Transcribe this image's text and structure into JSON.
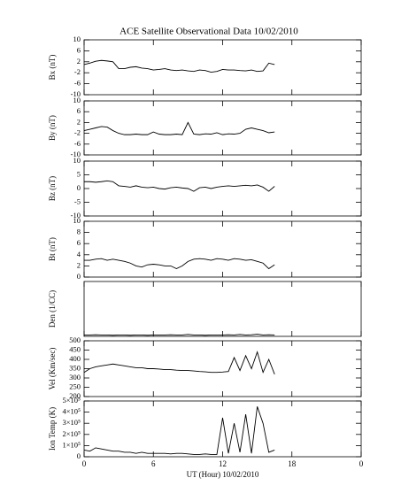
{
  "chart_data": [
    {
      "type": "line",
      "title": "ACE Satellite Observational Data   10/02/2010",
      "ylabel": "Bx (nT)",
      "color": "#000000",
      "x": [
        0,
        0.5,
        1,
        1.5,
        2,
        2.5,
        3,
        3.5,
        4,
        4.5,
        5,
        5.5,
        6,
        6.5,
        7,
        7.5,
        8,
        8.5,
        9,
        9.5,
        10,
        10.5,
        11,
        11.5,
        12,
        12.5,
        13,
        13.5,
        14,
        14.5,
        15,
        15.5,
        16,
        16.5
      ],
      "values": [
        1,
        1.5,
        2.2,
        2.5,
        2.3,
        2,
        -0.5,
        -0.5,
        0,
        0.2,
        -0.3,
        -0.5,
        -1,
        -0.8,
        -0.5,
        -1,
        -1.2,
        -1,
        -1.3,
        -1.5,
        -1,
        -1.2,
        -1.8,
        -1.5,
        -0.8,
        -1,
        -1,
        -1.2,
        -1.3,
        -1,
        -1.5,
        -1.3,
        1.5,
        1
      ],
      "xlim": [
        0,
        24
      ],
      "ylim": [
        -10,
        10
      ],
      "yticks": [
        -10,
        -6,
        -2,
        2,
        6,
        10
      ]
    },
    {
      "type": "line",
      "ylabel": "By (nT)",
      "color": "#000000",
      "x": [
        0,
        0.5,
        1,
        1.5,
        2,
        2.5,
        3,
        3.5,
        4,
        4.5,
        5,
        5.5,
        6,
        6.5,
        7,
        7.5,
        8,
        8.5,
        9,
        9.5,
        10,
        10.5,
        11,
        11.5,
        12,
        12.5,
        13,
        13.5,
        14,
        14.5,
        15,
        15.5,
        16,
        16.5
      ],
      "values": [
        -1,
        -0.5,
        0,
        0.5,
        0.3,
        -1,
        -2,
        -2.5,
        -2.5,
        -2.3,
        -2.5,
        -2.5,
        -1.5,
        -2.3,
        -2.5,
        -2.5,
        -2.3,
        -2.5,
        2,
        -2.3,
        -2.5,
        -2.2,
        -2.3,
        -1.8,
        -2.5,
        -2.2,
        -2.3,
        -2,
        -0.5,
        0,
        -0.5,
        -1,
        -1.8,
        -1.5
      ],
      "xlim": [
        0,
        24
      ],
      "ylim": [
        -10,
        10
      ],
      "yticks": [
        -10,
        -6,
        -2,
        2,
        6,
        10
      ]
    },
    {
      "type": "line",
      "ylabel": "Bz (nT)",
      "color": "#000000",
      "x": [
        0,
        0.5,
        1,
        1.5,
        2,
        2.5,
        3,
        3.5,
        4,
        4.5,
        5,
        5.5,
        6,
        6.5,
        7,
        7.5,
        8,
        8.5,
        9,
        9.5,
        10,
        10.5,
        11,
        11.5,
        12,
        12.5,
        13,
        13.5,
        14,
        14.5,
        15,
        15.5,
        16,
        16.5
      ],
      "values": [
        2.5,
        2.5,
        2.3,
        2.5,
        2.8,
        2.5,
        1,
        0.8,
        0.5,
        1,
        0.5,
        0.3,
        0.5,
        0,
        -0.2,
        0.3,
        0.5,
        0.2,
        0,
        -1,
        0.3,
        0.5,
        0,
        0.5,
        0.8,
        1,
        0.8,
        1,
        1.2,
        1,
        1.3,
        0.5,
        -1,
        0.8
      ],
      "xlim": [
        0,
        24
      ],
      "ylim": [
        -10,
        10
      ],
      "yticks": [
        -10,
        -5,
        0,
        5,
        10
      ]
    },
    {
      "type": "line",
      "ylabel": "Bt (nT)",
      "color": "#000000",
      "x": [
        0,
        0.5,
        1,
        1.5,
        2,
        2.5,
        3,
        3.5,
        4,
        4.5,
        5,
        5.5,
        6,
        6.5,
        7,
        7.5,
        8,
        8.5,
        9,
        9.5,
        10,
        10.5,
        11,
        11.5,
        12,
        12.5,
        13,
        13.5,
        14,
        14.5,
        15,
        15.5,
        16,
        16.5
      ],
      "values": [
        3,
        3,
        3.2,
        3.3,
        3,
        3.2,
        3,
        2.8,
        2.5,
        2,
        1.8,
        2.2,
        2.3,
        2.2,
        2,
        2,
        1.5,
        2,
        2.8,
        3.2,
        3.3,
        3.2,
        3,
        3.3,
        3.2,
        3,
        3.3,
        3.2,
        3,
        3.1,
        2.8,
        2.5,
        1.5,
        2.2
      ],
      "xlim": [
        0,
        24
      ],
      "ylim": [
        0,
        10
      ],
      "yticks": [
        0,
        2,
        4,
        6,
        8,
        10
      ]
    },
    {
      "type": "line",
      "ylabel": "Den (1/CC)",
      "color": "#000000",
      "x": [
        0,
        0.5,
        1,
        1.5,
        2,
        2.5,
        3,
        3.5,
        4,
        4.5,
        5,
        5.5,
        6,
        6.5,
        7,
        7.5,
        8,
        8.5,
        9,
        9.5,
        10,
        10.5,
        11,
        11.5,
        12,
        12.5,
        13,
        13.5,
        14,
        14.5,
        15,
        15.5,
        16,
        16.5
      ],
      "values": [
        0.5,
        0.5,
        0.6,
        0.5,
        0.5,
        0.4,
        0.5,
        0.5,
        0.4,
        0.5,
        0.5,
        0.4,
        0.5,
        0.5,
        0.5,
        0.6,
        0.5,
        0.5,
        0.7,
        0.5,
        0.5,
        0.4,
        0.5,
        0.5,
        0.5,
        0.6,
        0.5,
        0.7,
        0.5,
        0.6,
        0.8,
        0.5,
        0.6,
        0.5
      ],
      "xlim": [
        0,
        24
      ],
      "ylim": [
        0,
        20
      ]
    },
    {
      "type": "line",
      "ylabel": "Vel (Km/sec)",
      "color": "#000000",
      "x": [
        0,
        0.5,
        1,
        1.5,
        2,
        2.5,
        3,
        3.5,
        4,
        4.5,
        5,
        5.5,
        6,
        6.5,
        7,
        7.5,
        8,
        8.5,
        9,
        9.5,
        10,
        10.5,
        11,
        11.5,
        12,
        12.5,
        13,
        13.5,
        14,
        14.5,
        15,
        15.5,
        16,
        16.5
      ],
      "values": [
        330,
        350,
        360,
        365,
        370,
        375,
        370,
        365,
        360,
        355,
        355,
        350,
        350,
        348,
        345,
        345,
        342,
        340,
        340,
        338,
        335,
        333,
        330,
        330,
        332,
        335,
        410,
        340,
        420,
        350,
        440,
        330,
        400,
        320
      ],
      "xlim": [
        0,
        24
      ],
      "ylim": [
        200,
        500
      ],
      "yticks": [
        200,
        250,
        300,
        350,
        400,
        450,
        500
      ]
    },
    {
      "type": "line",
      "ylabel": "Ion Temp (K)",
      "xlabel": "UT (Hour)  10/02/2010",
      "color": "#000000",
      "x": [
        0,
        0.5,
        1,
        1.5,
        2,
        2.5,
        3,
        3.5,
        4,
        4.5,
        5,
        5.5,
        6,
        6.5,
        7,
        7.5,
        8,
        8.5,
        9,
        9.5,
        10,
        10.5,
        11,
        11.5,
        12,
        12.5,
        13,
        13.5,
        14,
        14.5,
        15,
        15.5,
        16,
        16.5
      ],
      "values": [
        60000,
        50000,
        80000,
        70000,
        60000,
        50000,
        50000,
        40000,
        40000,
        30000,
        40000,
        30000,
        30000,
        30000,
        30000,
        25000,
        30000,
        30000,
        25000,
        20000,
        20000,
        25000,
        20000,
        20000,
        350000,
        30000,
        300000,
        40000,
        380000,
        30000,
        450000,
        300000,
        40000,
        60000
      ],
      "xlim": [
        0,
        24
      ],
      "ylim": [
        0,
        500000
      ],
      "yticks": [
        0,
        {
          "value": 100000,
          "label": "1×10⁵"
        },
        {
          "value": 200000,
          "label": "2×10⁵"
        },
        {
          "value": 300000,
          "label": "3×10⁵"
        },
        {
          "value": 400000,
          "label": "4×10⁵"
        },
        {
          "value": 500000,
          "label": "5×10⁵"
        }
      ],
      "xticks": [
        0,
        6,
        12,
        18,
        {
          "value": 24,
          "label": "0"
        }
      ]
    }
  ]
}
